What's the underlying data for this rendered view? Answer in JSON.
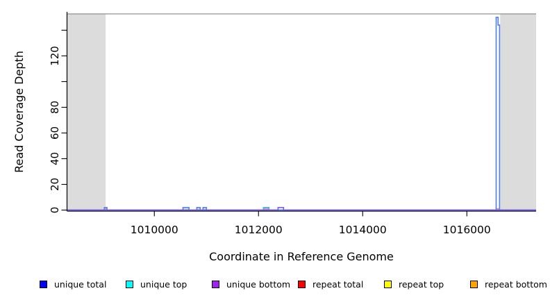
{
  "chart_data": {
    "type": "line",
    "subtype": "step-coverage",
    "title": "",
    "xlabel": "Coordinate in Reference Genome",
    "ylabel": "Read Coverage Depth",
    "xlim": [
      1008330,
      1017330
    ],
    "ylim": [
      0,
      152
    ],
    "grid": false,
    "x_ticks": [
      {
        "value": 1010000,
        "label": "1010000"
      },
      {
        "value": 1012000,
        "label": "1012000"
      },
      {
        "value": 1014000,
        "label": "1014000"
      },
      {
        "value": 1016000,
        "label": "1016000"
      }
    ],
    "y_ticks": [
      {
        "value": 0,
        "label": "0"
      },
      {
        "value": 20,
        "label": "20"
      },
      {
        "value": 40,
        "label": "40"
      },
      {
        "value": 60,
        "label": "60"
      },
      {
        "value": 80,
        "label": "80"
      },
      {
        "value": 100,
        "label": ""
      },
      {
        "value": 120,
        "label": "120"
      },
      {
        "value": 140,
        "label": ""
      }
    ],
    "shaded_regions": [
      {
        "x0": 1008330,
        "x1": 1009065,
        "color": "#dcdcdc"
      },
      {
        "x0": 1016640,
        "x1": 1017330,
        "color": "#dcdcdc"
      }
    ],
    "top_border_color": "#909090",
    "axis_color": "#000000",
    "series": [
      {
        "name": "unique total",
        "legend_color": "#0000ff",
        "line_color": "#5585ea",
        "segments": [
          [
            1009040,
            1009090,
            2
          ],
          [
            1010550,
            1010665,
            2
          ],
          [
            1010815,
            1010880,
            2
          ],
          [
            1010935,
            1011000,
            2
          ],
          [
            1016563,
            1016600,
            150
          ],
          [
            1016600,
            1016628,
            144
          ]
        ]
      },
      {
        "name": "unique top",
        "legend_color": "#00ffff",
        "line_color": "#2fb6ea",
        "segments": [
          [
            1012095,
            1012200,
            2
          ]
        ]
      },
      {
        "name": "unique bottom",
        "legend_color": "#a020f0",
        "line_color": "#7d5fe5",
        "segments": [
          [
            1012375,
            1012480,
            2
          ]
        ]
      },
      {
        "name": "repeat total",
        "legend_color": "#ff0000",
        "line_color": "#f49090",
        "segments": [
          [
            1012100,
            1012195,
            1
          ],
          [
            1016566,
            1016622,
            1
          ]
        ]
      },
      {
        "name": "repeat top",
        "legend_color": "#ffff00",
        "line_color": "#d8e8a8",
        "segments": [
          [
            1010560,
            1010655,
            1
          ],
          [
            1010820,
            1010875,
            1
          ],
          [
            1010940,
            1010995,
            1
          ]
        ]
      },
      {
        "name": "repeat bottom",
        "legend_color": "#ffa500",
        "line_color": "#f0a860",
        "segments": [
          [
            1009045,
            1009085,
            1
          ]
        ]
      }
    ],
    "draw_order": [
      "repeat top",
      "repeat bottom",
      "repeat total",
      "unique top",
      "unique total",
      "unique bottom"
    ]
  },
  "legend": {
    "items": [
      {
        "label": "unique total",
        "color": "#0000ff"
      },
      {
        "label": "unique top",
        "color": "#00ffff"
      },
      {
        "label": "unique bottom",
        "color": "#a020f0"
      },
      {
        "label": "repeat total",
        "color": "#ff0000"
      },
      {
        "label": "repeat top",
        "color": "#ffff00"
      },
      {
        "label": "repeat bottom",
        "color": "#ffa500"
      }
    ]
  }
}
